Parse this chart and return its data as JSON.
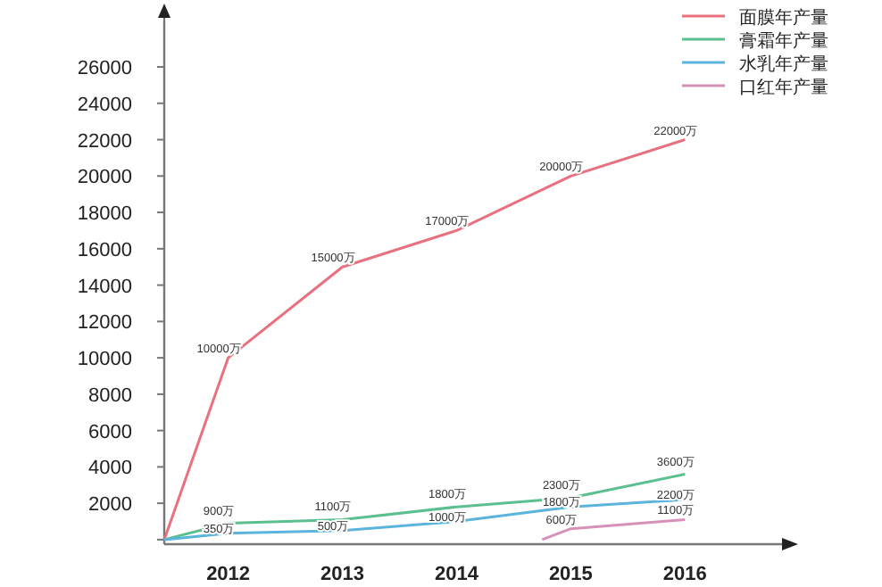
{
  "chart_data": {
    "type": "line",
    "xlim": [
      2011.44,
      2016.85
    ],
    "ylim": [
      -250,
      28700
    ],
    "xticks": [
      2012,
      2013,
      2014,
      2015,
      2016
    ],
    "yticks": [
      {
        "value": 0,
        "label": null
      },
      2000,
      4000,
      6000,
      8000,
      10000,
      12000,
      14000,
      16000,
      18000,
      20000,
      22000,
      24000,
      26000
    ],
    "grid": false,
    "legend": "top right",
    "marker": "none",
    "line_style": "solid",
    "series": [
      {
        "name": "面膜年产量",
        "color": "#e8707f",
        "x": [
          2011.44,
          2012,
          2013,
          2014,
          2015,
          2016
        ],
        "values": [
          0,
          10000,
          15000,
          17000,
          20000,
          22000
        ],
        "value_labels": [
          null,
          "10000万",
          "15000万",
          "17000万",
          "20000万",
          "22000万"
        ]
      },
      {
        "name": "膏霜年产量",
        "color": "#5cbf8f",
        "x": [
          2011.44,
          2012,
          2013,
          2014,
          2015,
          2016
        ],
        "values": [
          0,
          900,
          1100,
          1800,
          2300,
          3600
        ],
        "value_labels": [
          null,
          "900万",
          "1100万",
          "1800万",
          "2300万",
          "3600万"
        ]
      },
      {
        "name": "水乳年产量",
        "color": "#5ab4dc",
        "x": [
          2011.44,
          2012,
          2013,
          2014,
          2015,
          2016
        ],
        "values": [
          0,
          350,
          500,
          1000,
          1800,
          2200
        ],
        "value_labels": [
          null,
          "350万",
          "500万",
          "1000万",
          "1800万",
          "2200万"
        ]
      },
      {
        "name": "口红年产量",
        "color": "#d890b8",
        "x": [
          2014.75,
          2015,
          2016
        ],
        "values": [
          0,
          600,
          1100
        ],
        "value_labels": [
          null,
          "600万",
          "1100万"
        ]
      }
    ]
  }
}
